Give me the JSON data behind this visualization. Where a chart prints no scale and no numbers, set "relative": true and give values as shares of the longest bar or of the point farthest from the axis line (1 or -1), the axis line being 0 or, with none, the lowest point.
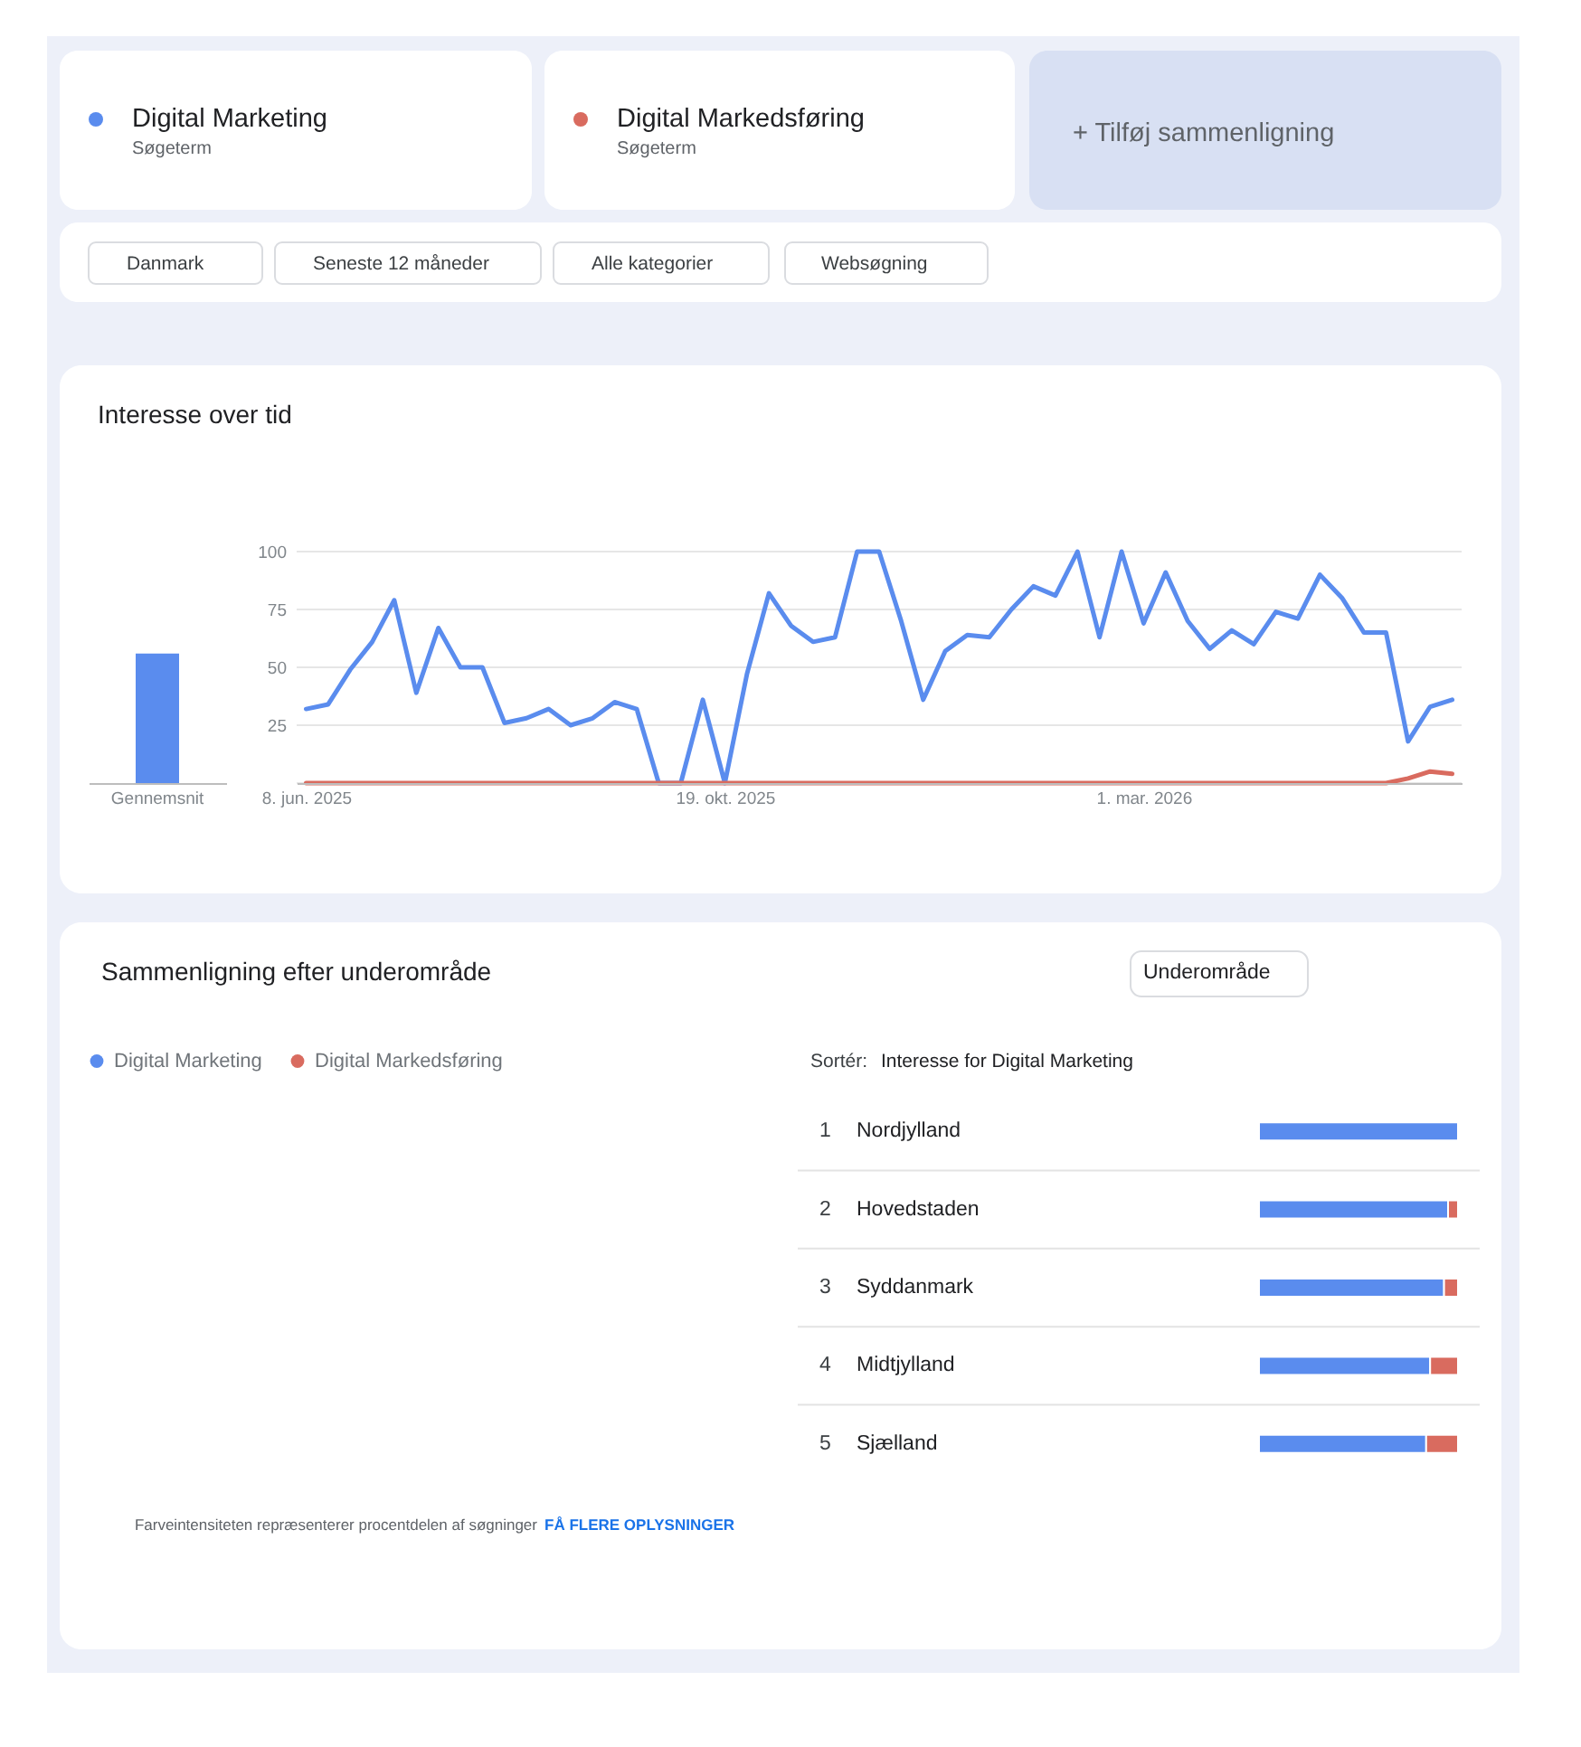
{
  "chart_data": [
    {
      "type": "line",
      "x": [
        "2025-06-08",
        "2025-06-15",
        "2025-06-22",
        "2025-06-29",
        "2025-07-06",
        "2025-07-13",
        "2025-07-20",
        "2025-07-27",
        "2025-08-03",
        "2025-08-10",
        "2025-08-17",
        "2025-08-24",
        "2025-08-31",
        "2025-09-07",
        "2025-09-14",
        "2025-09-21",
        "2025-09-28",
        "2025-10-05",
        "2025-10-12",
        "2025-10-19",
        "2025-10-26",
        "2025-11-02",
        "2025-11-09",
        "2025-11-16",
        "2025-11-23",
        "2025-11-30",
        "2025-12-07",
        "2025-12-14",
        "2025-12-21",
        "2025-12-28",
        "2026-01-04",
        "2026-01-11",
        "2026-01-18",
        "2026-01-25",
        "2026-02-01",
        "2026-02-08",
        "2026-02-15",
        "2026-02-22",
        "2026-03-01",
        "2026-03-08",
        "2026-03-15",
        "2026-03-22",
        "2026-03-29",
        "2026-04-05",
        "2026-04-12",
        "2026-04-19",
        "2026-04-26",
        "2026-05-03",
        "2026-05-10",
        "2026-05-17",
        "2026-05-24",
        "2026-05-31",
        "2026-06-07"
      ],
      "series": [
        {
          "name": "Digital Marketing",
          "color": "#5a8cee",
          "values": [
            32,
            34,
            49,
            61,
            79,
            39,
            67,
            50,
            50,
            26,
            28,
            32,
            25,
            28,
            35,
            32,
            0,
            0,
            36,
            0,
            47,
            82,
            68,
            61,
            63,
            100,
            100,
            70,
            36,
            57,
            64,
            63,
            75,
            85,
            81,
            100,
            63,
            100,
            69,
            91,
            70,
            58,
            66,
            60,
            74,
            71,
            90,
            80,
            65,
            65,
            18,
            33,
            36
          ]
        },
        {
          "name": "Digital Markedsføring",
          "color": "#d96b5f",
          "values": [
            0,
            0,
            0,
            0,
            0,
            0,
            0,
            0,
            0,
            0,
            0,
            0,
            0,
            0,
            0,
            0,
            0,
            0,
            0,
            0,
            0,
            0,
            0,
            0,
            0,
            0,
            0,
            0,
            0,
            0,
            0,
            0,
            0,
            0,
            0,
            0,
            0,
            0,
            0,
            0,
            0,
            0,
            0,
            0,
            0,
            0,
            0,
            0,
            0,
            0,
            2,
            5,
            4
          ]
        }
      ],
      "xlim": [
        "2025-06-05",
        "2026-06-10"
      ],
      "xticks": [
        {
          "value": "2025-06-08",
          "label": "8. jun. 2025"
        },
        {
          "value": "2025-10-19",
          "label": "19. okt. 2025"
        },
        {
          "value": "2026-03-01",
          "label": "1. mar. 2026"
        }
      ],
      "ylim": [
        0,
        100
      ],
      "yticks": [
        {
          "value": 0,
          "label": null
        },
        25,
        50,
        75,
        100
      ],
      "grid": "y",
      "legend": "top",
      "annotations": [
        "Søgeterm",
        "Søgeterm",
        "+ Tilføj sammenligning",
        "Danmark",
        "Seneste 12 måneder",
        "Alle kategorier",
        "Websøgning"
      ]
    },
    {
      "type": "bar",
      "title": "Interesse over tid",
      "categories": [
        "Gennemsnit"
      ],
      "values": [
        56
      ],
      "color": "#5a8cee",
      "ylim": [
        0,
        100
      ],
      "tick_labels": "x"
    },
    {
      "type": "bar",
      "orientation": "horizontal",
      "stacked": true,
      "relative": true,
      "categories": [
        "Nordjylland",
        "Hovedstaden",
        "Syddanmark",
        "Midtjylland",
        "Sjælland"
      ],
      "series": [
        {
          "name": "Digital Marketing",
          "color": "#5a8cee",
          "values": [
            1,
            0.95,
            0.93,
            0.86,
            0.84
          ]
        },
        {
          "name": "Digital Markedsføring",
          "color": "#d96b5f",
          "values": [
            null,
            0.05,
            0.07,
            0.14,
            0.16
          ]
        }
      ],
      "legend": "top left",
      "annotations": [
        "Sammenligning efter underområde",
        "Underområde",
        "Sortér:",
        "Interesse for Digital Marketing",
        "1",
        "2",
        "3",
        "4",
        "5",
        "Farveintensiteten repræsenterer procentdelen af søgninger",
        "FÅ FLERE OPLYSNINGER"
      ]
    }
  ]
}
